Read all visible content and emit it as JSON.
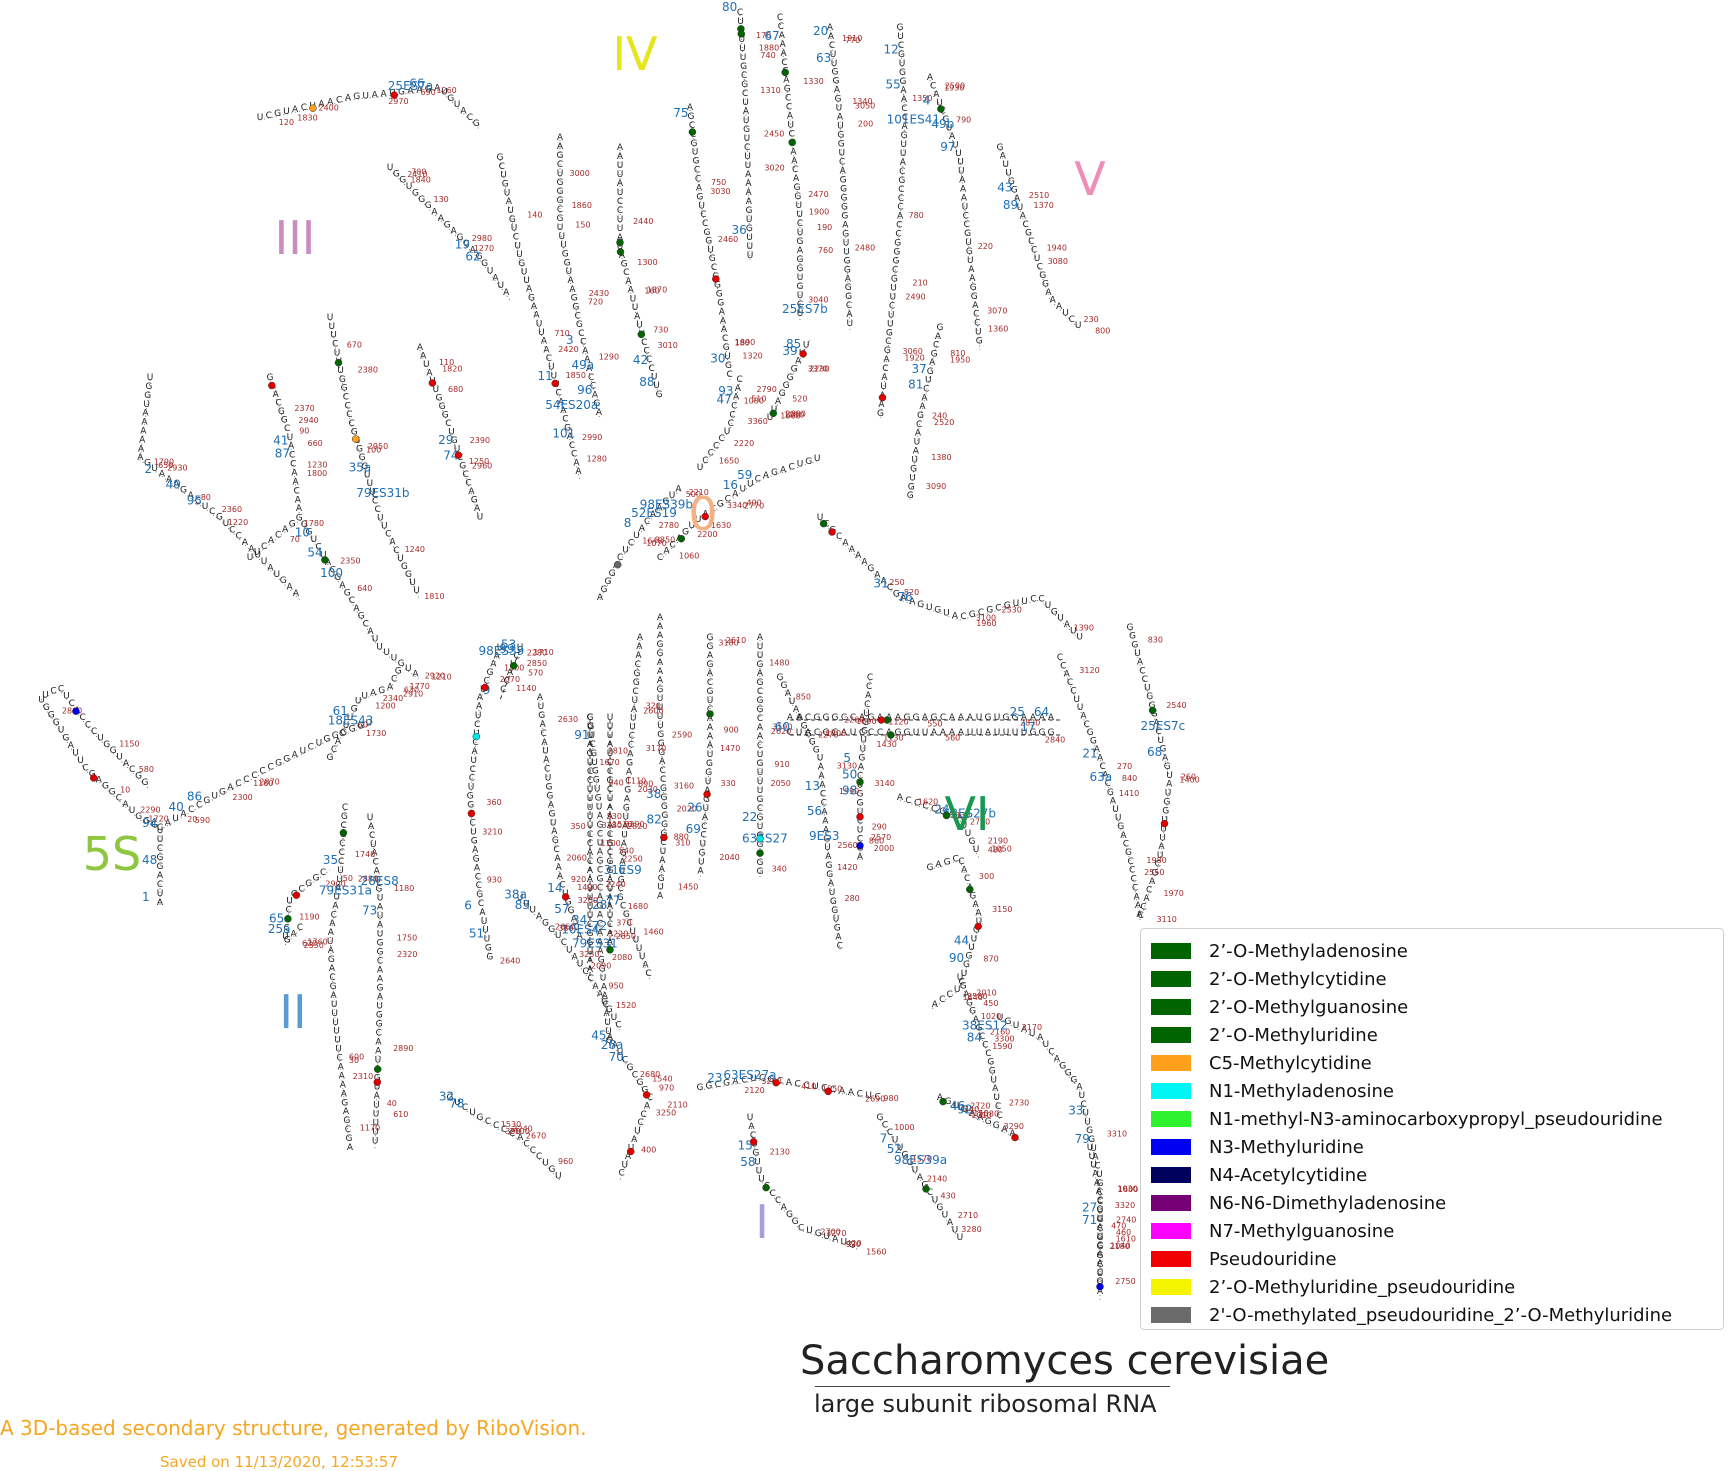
{
  "title": "Saccharomyces cerevisiae",
  "subtitle": "large subunit ribosomal RNA",
  "credit": "A 3D-based secondary structure, generated by RiboVision.",
  "saved": "Saved on 11/13/2020, 12:53:57",
  "domains": [
    {
      "label": "5S",
      "color": "#8dc63f"
    },
    {
      "label": "I",
      "color": "#a6a0d8"
    },
    {
      "label": "II",
      "color": "#5b9bd5"
    },
    {
      "label": "III",
      "color": "#c98bc0"
    },
    {
      "label": "IV",
      "color": "#e5e51a"
    },
    {
      "label": "V",
      "color": "#f08cb8"
    },
    {
      "label": "VI",
      "color": "#1a9850"
    },
    {
      "label": "0",
      "color": "#f4b183"
    }
  ],
  "helix_labels": [
    "1",
    "2",
    "3",
    "4",
    "5",
    "6",
    "7",
    "8",
    "9",
    "10",
    "11",
    "12",
    "13",
    "14",
    "15",
    "16",
    "17",
    "18ES43",
    "19",
    "20",
    "21",
    "22",
    "23",
    "24",
    "25",
    "25a",
    "25ES7a",
    "25ES7b",
    "25ES7c",
    "26",
    "26a",
    "27",
    "28",
    "28ES8",
    "29",
    "30",
    "31",
    "31ES9",
    "32",
    "33",
    "34",
    "35",
    "35a",
    "36",
    "37",
    "38",
    "38a",
    "38ES12",
    "39",
    "40",
    "41",
    "42",
    "43",
    "44",
    "45",
    "46",
    "47",
    "48",
    "49",
    "49a",
    "49b",
    "50",
    "51",
    "52",
    "52ES19",
    "53",
    "54",
    "54ES20a",
    "55",
    "56",
    "57",
    "58",
    "59",
    "60",
    "61",
    "62",
    "63",
    "63a",
    "63ES27",
    "63ES27a",
    "63ES27b",
    "64",
    "65",
    "66",
    "67",
    "68",
    "69",
    "70",
    "71",
    "72",
    "73",
    "74",
    "75",
    "76",
    "77",
    "78",
    "79",
    "79ES31",
    "79ES31a",
    "79ES31b",
    "80",
    "81",
    "82",
    "83",
    "84",
    "85",
    "86",
    "87",
    "88",
    "89",
    "90",
    "91",
    "92",
    "93",
    "94",
    "95",
    "96",
    "97",
    "98",
    "98ES39",
    "98ES39a",
    "98ES39b",
    "99",
    "100",
    "101",
    "101ES41",
    "9ES3",
    "10ES4"
  ],
  "position_labels": [
    "10",
    "20",
    "30",
    "40",
    "50",
    "60",
    "70",
    "80",
    "90",
    "100",
    "110",
    "120",
    "130",
    "140",
    "150",
    "160",
    "170",
    "180",
    "190",
    "200",
    "210",
    "220",
    "230",
    "240",
    "250",
    "260",
    "270",
    "280",
    "290",
    "300",
    "310",
    "320",
    "330",
    "340",
    "350",
    "360",
    "370",
    "380",
    "390",
    "400",
    "410",
    "420",
    "430",
    "440",
    "450",
    "460",
    "470",
    "480",
    "490",
    "500",
    "510",
    "520",
    "530",
    "540",
    "550",
    "560",
    "570",
    "580",
    "590",
    "600",
    "610",
    "620",
    "630",
    "640",
    "650",
    "660",
    "670",
    "680",
    "690",
    "700",
    "710",
    "720",
    "730",
    "740",
    "750",
    "760",
    "770",
    "780",
    "790",
    "800",
    "810",
    "820",
    "830",
    "840",
    "850",
    "860",
    "870",
    "880",
    "890",
    "900",
    "910",
    "920",
    "930",
    "940",
    "950",
    "960",
    "970",
    "980",
    "990",
    "1000",
    "1010",
    "1020",
    "1030",
    "1040",
    "1050",
    "1060",
    "1070",
    "1080",
    "1090",
    "1100",
    "1110",
    "1120",
    "1130",
    "1140",
    "1150",
    "1160",
    "1170",
    "1180",
    "1190",
    "1200",
    "1210",
    "1220",
    "1230",
    "1240",
    "1250",
    "1260",
    "1270",
    "1280",
    "1290",
    "1300",
    "1310",
    "1320",
    "1330",
    "1340",
    "1350",
    "1360",
    "1370",
    "1380",
    "1390",
    "1400",
    "1410",
    "1420",
    "1430",
    "1440",
    "1450",
    "1460",
    "1470",
    "1480",
    "1490",
    "1500",
    "1510",
    "1520",
    "1530",
    "1540",
    "1550",
    "1560",
    "1570",
    "1580",
    "1590",
    "1600",
    "1610",
    "1620",
    "1630",
    "1640",
    "1650",
    "1660",
    "1670",
    "1680",
    "1690",
    "1700",
    "1710",
    "1720",
    "1730",
    "1740",
    "1750",
    "1760",
    "1770",
    "1780",
    "1790",
    "1800",
    "1810",
    "1820",
    "1830",
    "1840",
    "1850",
    "1860",
    "1870",
    "1880",
    "1890",
    "1900",
    "1910",
    "1920",
    "1930",
    "1940",
    "1950",
    "1960",
    "1970",
    "1980",
    "1990",
    "2000",
    "2010",
    "2020",
    "2030",
    "2040",
    "2050",
    "2060",
    "2070",
    "2080",
    "2090",
    "2100",
    "2110",
    "2120",
    "2130",
    "2140",
    "2150",
    "2160",
    "2170",
    "2180",
    "2190",
    "2200",
    "2210",
    "2220",
    "2230",
    "2240",
    "2250",
    "2260",
    "2270",
    "2280",
    "2290",
    "2300",
    "2310",
    "2320",
    "2330",
    "2340",
    "2350",
    "2360",
    "2370",
    "2380",
    "2390",
    "2400",
    "2410",
    "2420",
    "2430",
    "2440",
    "2450",
    "2460",
    "2470",
    "2480",
    "2490",
    "2500",
    "2510",
    "2520",
    "2530",
    "2540",
    "2550",
    "2560",
    "2570",
    "2580",
    "2590",
    "2600",
    "2610",
    "2620",
    "2630",
    "2640",
    "2650",
    "2660",
    "2670",
    "2680",
    "2690",
    "2700",
    "2710",
    "2720",
    "2730",
    "2740",
    "2750",
    "2760",
    "2770",
    "2780",
    "2790",
    "2800",
    "2810",
    "2820",
    "2830",
    "2840",
    "2850",
    "2860",
    "2870",
    "2880",
    "2890",
    "2900",
    "2910",
    "2920",
    "2930",
    "2940",
    "2950",
    "2960",
    "2970",
    "2980",
    "2990",
    "3000",
    "3010",
    "3020",
    "3030",
    "3040",
    "3050",
    "3060",
    "3070",
    "3080",
    "3090",
    "3100",
    "3110",
    "3120",
    "3130",
    "3140",
    "3150",
    "3160",
    "3170",
    "3180",
    "3190",
    "3200",
    "3210",
    "3220",
    "3230",
    "3240",
    "3250",
    "3260",
    "3270",
    "3280",
    "3290",
    "3300",
    "3310",
    "3320",
    "3330",
    "3340",
    "3350",
    "3360",
    "3370",
    "3380",
    "3390"
  ],
  "legend": [
    {
      "label": "2’-O-Methyladenosine",
      "color": "#006400"
    },
    {
      "label": "2’-O-Methylcytidine",
      "color": "#006400"
    },
    {
      "label": "2’-O-Methylguanosine",
      "color": "#006400"
    },
    {
      "label": "2’-O-Methyluridine",
      "color": "#006400"
    },
    {
      "label": "C5-Methylcytidine",
      "color": "#ff9f1a"
    },
    {
      "label": "N1-Methyladenosine",
      "color": "#00f5f5"
    },
    {
      "label": "N1-methyl-N3-aminocarboxypropyl_pseudouridine",
      "color": "#2ef22e"
    },
    {
      "label": "N3-Methyluridine",
      "color": "#0000f0"
    },
    {
      "label": "N4-Acetylcytidine",
      "color": "#00005c"
    },
    {
      "label": "N6-N6-Dimethyladenosine",
      "color": "#750075"
    },
    {
      "label": "N7-Methylguanosine",
      "color": "#ff00ff"
    },
    {
      "label": "Pseudouridine",
      "color": "#f00000"
    },
    {
      "label": "2’-O-Methyluridine_pseudouridine",
      "color": "#f5f500"
    },
    {
      "label": "2'-O-methylated_pseudouridine_2’-O-Methyluridine",
      "color": "#6b6b6b"
    }
  ],
  "marker_counts": {
    "green": 30,
    "red": 28,
    "blue": 3,
    "orange": 2,
    "cyan": 2,
    "gray": 1
  }
}
